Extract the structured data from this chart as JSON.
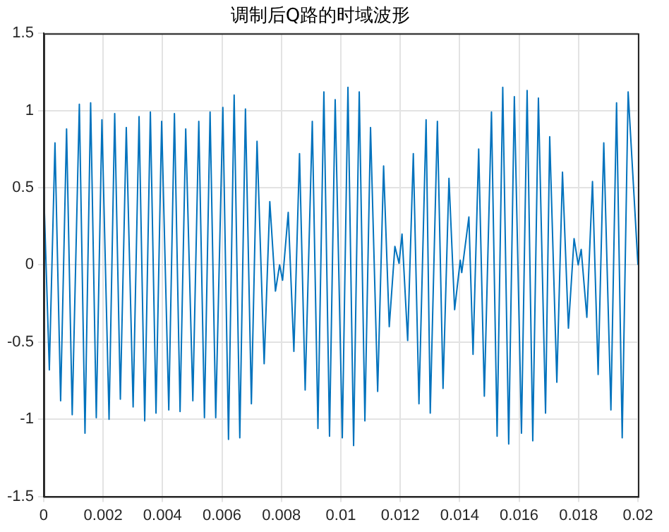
{
  "chart_data": {
    "type": "line",
    "title": "调制后Q路的时域波形",
    "x": [
      0,
      0.00019,
      0.00038,
      0.00057,
      0.00077,
      0.00096,
      0.0012,
      0.00139,
      0.00158,
      0.00177,
      0.00196,
      0.0022,
      0.00239,
      0.00258,
      0.00278,
      0.00301,
      0.00321,
      0.0034,
      0.00359,
      0.00378,
      0.00397,
      0.00421,
      0.0044,
      0.00459,
      0.00478,
      0.00502,
      0.00522,
      0.00541,
      0.0056,
      0.00579,
      0.00603,
      0.00622,
      0.00641,
      0.0066,
      0.00679,
      0.00699,
      0.00718,
      0.00742,
      0.00761,
      0.0078,
      0.00794,
      0.00804,
      0.00823,
      0.00842,
      0.00861,
      0.0088,
      0.00904,
      0.00923,
      0.00943,
      0.00962,
      0.00981,
      0.01005,
      0.01024,
      0.01043,
      0.01062,
      0.01081,
      0.011,
      0.01124,
      0.01144,
      0.01163,
      0.01182,
      0.01196,
      0.01206,
      0.01225,
      0.01244,
      0.01263,
      0.01287,
      0.01301,
      0.01325,
      0.01344,
      0.01364,
      0.01383,
      0.01402,
      0.01407,
      0.01431,
      0.01445,
      0.01464,
      0.01483,
      0.01507,
      0.01526,
      0.01545,
      0.01565,
      0.01584,
      0.01608,
      0.01627,
      0.01646,
      0.01665,
      0.01689,
      0.01703,
      0.01727,
      0.01746,
      0.01766,
      0.01785,
      0.01799,
      0.01809,
      0.01828,
      0.01847,
      0.01866,
      0.01885,
      0.01909,
      0.01928,
      0.01947,
      0.01967,
      0.02
    ],
    "series": [
      {
        "color": "#0072bd",
        "values": [
          0.5,
          -0.68,
          0.79,
          -0.88,
          0.88,
          -0.97,
          1.04,
          -1.09,
          1.05,
          -0.99,
          0.94,
          -1.0,
          0.98,
          -0.87,
          0.89,
          -0.92,
          0.96,
          -1.01,
          0.99,
          -0.96,
          0.93,
          -0.94,
          0.98,
          -0.95,
          0.88,
          -0.88,
          0.93,
          -0.99,
          0.99,
          -0.99,
          1.02,
          -1.13,
          1.1,
          -1.12,
          1.01,
          -0.9,
          0.8,
          -0.64,
          0.41,
          -0.17,
          0.0,
          -0.1,
          0.34,
          -0.56,
          0.72,
          -0.81,
          0.93,
          -1.06,
          1.12,
          -1.11,
          1.07,
          -1.12,
          1.15,
          -1.17,
          1.12,
          -1.01,
          0.89,
          -0.82,
          0.64,
          -0.4,
          0.12,
          0.01,
          0.2,
          -0.49,
          0.72,
          -0.9,
          0.94,
          -0.96,
          0.93,
          -0.8,
          0.56,
          -0.29,
          0.03,
          -0.05,
          0.31,
          -0.58,
          0.75,
          -0.85,
          0.99,
          -1.11,
          1.15,
          -1.16,
          1.09,
          -1.09,
          1.13,
          -1.14,
          1.08,
          -0.96,
          0.83,
          -0.76,
          0.6,
          -0.41,
          0.17,
          0.0,
          0.1,
          -0.34,
          0.54,
          -0.71,
          0.79,
          -0.94,
          1.05,
          -1.12,
          1.12,
          0.0
        ]
      }
    ],
    "xlim": [
      0,
      0.02
    ],
    "xticks": [
      0,
      0.002,
      0.004,
      0.006,
      0.008,
      0.01,
      0.012,
      0.014,
      0.016,
      0.018,
      0.02
    ],
    "ylim": [
      -1.5,
      1.5
    ],
    "yticks": [
      -1.5,
      -1,
      -0.5,
      0,
      0.5,
      1,
      1.5
    ],
    "grid": true,
    "marker": "none",
    "line_style": "solid"
  }
}
